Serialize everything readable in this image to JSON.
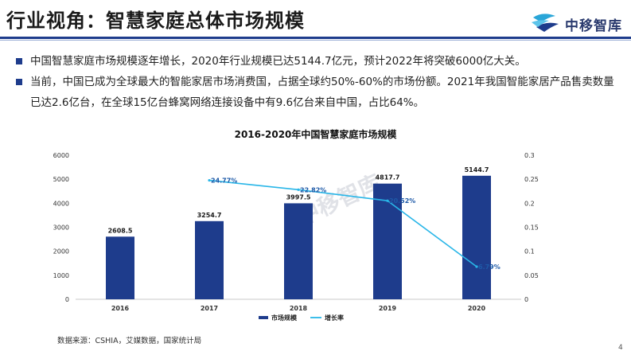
{
  "header": {
    "title": "行业视角：智慧家庭总体市场规模",
    "logo_text": "中移智库",
    "brand_color": "#1e3c8c"
  },
  "bullets": [
    "中国智慧家庭市场规模逐年增长，2020年行业规模已达5144.7亿元，预计2022年将突破6000亿大关。",
    "当前，中国已成为全球最大的智能家居市场消费国，占据全球约50%-60%的市场份额。2021年我国智能家居产品售卖数量已达2.6亿台，在全球15亿台蜂窝网络连接设备中有9.6亿台来自中国，占比64%。"
  ],
  "chart_data": {
    "type": "bar",
    "title": "2016-2020年中国智慧家庭市场规模",
    "categories": [
      "2016",
      "2017",
      "2018",
      "2019",
      "2020"
    ],
    "series": [
      {
        "name": "市场规模",
        "type": "bar",
        "axis": "left",
        "color": "#1e3c8c",
        "values": [
          2608.5,
          3254.7,
          3997.5,
          4817.7,
          5144.7
        ],
        "labels": [
          "2608.5",
          "3254.7",
          "3997.5",
          "4817.7",
          "5144.7"
        ]
      },
      {
        "name": "增长率",
        "type": "line",
        "axis": "right",
        "color": "#29b6e8",
        "values": [
          null,
          0.2477,
          0.2282,
          0.2052,
          0.0679
        ],
        "labels": [
          "",
          "24.77%",
          "22.82%",
          "20.52%",
          "6.79%"
        ]
      }
    ],
    "y_left": {
      "min": 0,
      "max": 6000,
      "ticks": [
        "0",
        "1000",
        "2000",
        "3000",
        "4000",
        "5000",
        "6000"
      ],
      "tick_values": [
        0,
        1000,
        2000,
        3000,
        4000,
        5000,
        6000
      ]
    },
    "y_right": {
      "min": 0,
      "max": 0.3,
      "ticks": [
        "0",
        "0.05",
        "0.1",
        "0.15",
        "0.2",
        "0.25",
        "0.3"
      ],
      "tick_values": [
        0,
        0.05,
        0.1,
        0.15,
        0.2,
        0.25,
        0.3
      ]
    },
    "grid": false,
    "legend": "bottom-center",
    "watermark": "中移智库"
  },
  "footer": {
    "source": "数据来源：CSHIA，艾媒数据，国家统计局",
    "page_number": "4"
  }
}
